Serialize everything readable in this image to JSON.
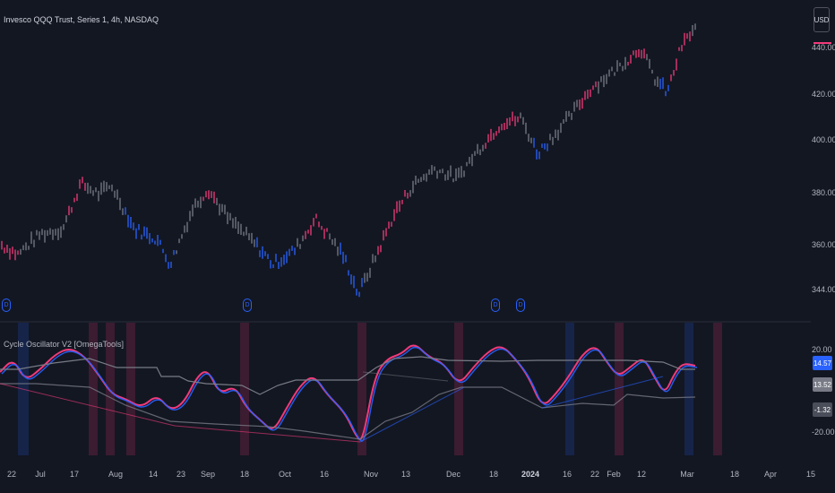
{
  "header": {
    "title": "Invesco QQQ Trust, Series 1, 4h, NASDAQ",
    "currency_button": "USD"
  },
  "price_axis": {
    "ticks": [
      "440.00",
      "420.00",
      "400.00",
      "380.00",
      "360.00",
      "344.00"
    ]
  },
  "indicator": {
    "name": "Cycle Oscillator V2 [OmegaTools]",
    "axis_ticks": [
      "20.00",
      "-20.00"
    ],
    "labels": [
      {
        "text": "14.57",
        "bg": "#2962ff"
      },
      {
        "text": "13.52",
        "bg": "#787b86"
      },
      {
        "text": "-1.32",
        "bg": "#4a4e5a"
      }
    ]
  },
  "time_axis": {
    "ticks": [
      {
        "label": "22",
        "bold": false
      },
      {
        "label": "Jul",
        "bold": false
      },
      {
        "label": "17",
        "bold": false
      },
      {
        "label": "Aug",
        "bold": false
      },
      {
        "label": "14",
        "bold": false
      },
      {
        "label": "23",
        "bold": false
      },
      {
        "label": "Sep",
        "bold": false
      },
      {
        "label": "18",
        "bold": false
      },
      {
        "label": "Oct",
        "bold": false
      },
      {
        "label": "16",
        "bold": false
      },
      {
        "label": "Nov",
        "bold": false
      },
      {
        "label": "13",
        "bold": false
      },
      {
        "label": "Dec",
        "bold": false
      },
      {
        "label": "18",
        "bold": false
      },
      {
        "label": "2024",
        "bold": true
      },
      {
        "label": "16",
        "bold": false
      },
      {
        "label": "22",
        "bold": false
      },
      {
        "label": "Feb",
        "bold": false
      },
      {
        "label": "12",
        "bold": false
      },
      {
        "label": "Mar",
        "bold": false
      },
      {
        "label": "18",
        "bold": false
      },
      {
        "label": "Apr",
        "bold": false
      },
      {
        "label": "15",
        "bold": false
      }
    ]
  },
  "event_markers": [
    "D",
    "D",
    "D",
    "D"
  ],
  "colors": {
    "background": "#131722",
    "bullish": "#f23a7a",
    "bearish": "#2962ff",
    "neutral": "#787b86",
    "zone_red": "#f23a7a",
    "zone_blue": "#2962ff"
  },
  "icons": {
    "event_marker": "dividend-icon"
  }
}
